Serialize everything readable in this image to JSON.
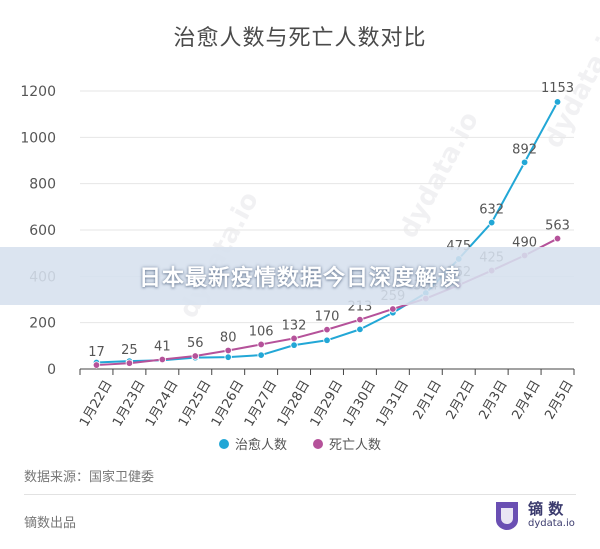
{
  "chart_data": {
    "type": "line",
    "title": "治愈人数与死亡人数对比",
    "categories": [
      "1月22日",
      "1月23日",
      "1月24日",
      "1月25日",
      "1月26日",
      "1月27日",
      "1月28日",
      "1月29日",
      "1月30日",
      "1月31日",
      "2月1日",
      "2月2日",
      "2月3日",
      "2月4日",
      "2月5日"
    ],
    "ylim": [
      0,
      1200
    ],
    "yticks": [
      0,
      200,
      400,
      600,
      800,
      1000,
      1200
    ],
    "grid": true,
    "legend_position": "bottom",
    "series": [
      {
        "name": "治愈人数",
        "color": "#22a7d6",
        "values": [
          28,
          34,
          38,
          49,
          51,
          60,
          103,
          124,
          171,
          243,
          328,
          475,
          632,
          892,
          1153
        ],
        "labels": [
          "",
          "",
          "",
          "",
          "",
          "",
          "",
          "",
          "",
          "",
          "",
          "475",
          "632",
          "892",
          "1153"
        ]
      },
      {
        "name": "死亡人数",
        "color": "#b5529a",
        "values": [
          17,
          25,
          41,
          56,
          80,
          106,
          132,
          170,
          213,
          259,
          304,
          362,
          425,
          490,
          563
        ],
        "labels": [
          "17",
          "25",
          "41",
          "56",
          "80",
          "106",
          "132",
          "170",
          "213",
          "259",
          "304",
          "362",
          "425",
          "490",
          "563"
        ]
      }
    ]
  },
  "banner": {
    "text": "日本最新疫情数据今日深度解读"
  },
  "source": "数据来源：国家卫健委",
  "footer": {
    "left": "镝数出品",
    "brand_name": "镝 数",
    "brand_domain": "dydata.io"
  },
  "watermark": {
    "text": "dydata.io"
  }
}
